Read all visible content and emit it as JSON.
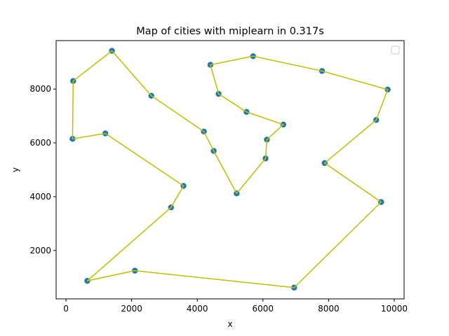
{
  "chart_data": {
    "type": "scatter",
    "title": "Map of cities with miplearn in 0.317s",
    "xlabel": "x",
    "ylabel": "y",
    "xlim": [
      -300,
      10300
    ],
    "ylim": [
      200,
      9800
    ],
    "xticks": [
      0,
      2000,
      4000,
      6000,
      8000,
      10000
    ],
    "yticks": [
      2000,
      4000,
      6000,
      8000
    ],
    "legend": "top-right (empty)",
    "points_color": "#1f77b4",
    "route_color": "#bfbf00",
    "cities": [
      {
        "x": 1400,
        "y": 9420
      },
      {
        "x": 2600,
        "y": 7750
      },
      {
        "x": 4200,
        "y": 6420
      },
      {
        "x": 4500,
        "y": 5700
      },
      {
        "x": 5200,
        "y": 4120
      },
      {
        "x": 6080,
        "y": 5420
      },
      {
        "x": 6120,
        "y": 6120
      },
      {
        "x": 6620,
        "y": 6680
      },
      {
        "x": 5500,
        "y": 7150
      },
      {
        "x": 4650,
        "y": 7820
      },
      {
        "x": 4400,
        "y": 8900
      },
      {
        "x": 5700,
        "y": 9220
      },
      {
        "x": 7800,
        "y": 8670
      },
      {
        "x": 9800,
        "y": 7980
      },
      {
        "x": 9450,
        "y": 6850
      },
      {
        "x": 7880,
        "y": 5250
      },
      {
        "x": 9600,
        "y": 3800
      },
      {
        "x": 6950,
        "y": 620
      },
      {
        "x": 2100,
        "y": 1250
      },
      {
        "x": 650,
        "y": 870
      },
      {
        "x": 3200,
        "y": 3600
      },
      {
        "x": 3580,
        "y": 4400
      },
      {
        "x": 1200,
        "y": 6350
      },
      {
        "x": 200,
        "y": 6150
      },
      {
        "x": 220,
        "y": 8300
      }
    ],
    "route": [
      0,
      1,
      2,
      3,
      4,
      5,
      6,
      7,
      8,
      9,
      10,
      11,
      12,
      13,
      14,
      15,
      16,
      17,
      18,
      19,
      20,
      21,
      22,
      23,
      24,
      0
    ]
  }
}
